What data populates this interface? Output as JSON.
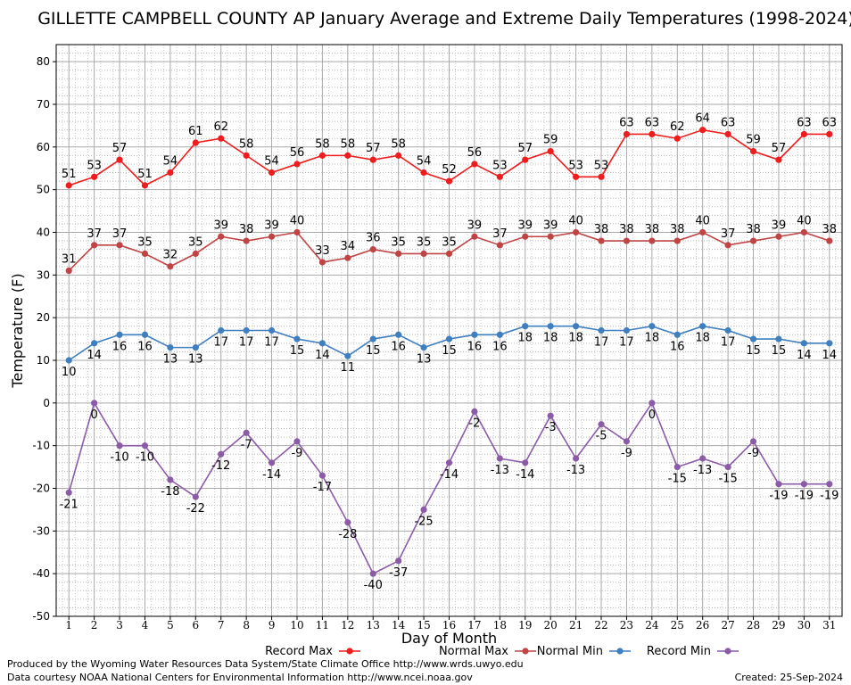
{
  "chart_data": {
    "type": "line",
    "title": "GILLETTE CAMPBELL COUNTY AP January Average and Extreme Daily Temperatures (1998-2024)",
    "xlabel": "Day of Month",
    "ylabel": "Temperature (F)",
    "ylim": [
      -50,
      84
    ],
    "yticks": [
      -50,
      -40,
      -30,
      -20,
      -10,
      0,
      10,
      20,
      30,
      40,
      50,
      60,
      70,
      80
    ],
    "x": [
      1,
      2,
      3,
      4,
      5,
      6,
      7,
      8,
      9,
      10,
      11,
      12,
      13,
      14,
      15,
      16,
      17,
      18,
      19,
      20,
      21,
      22,
      23,
      24,
      25,
      26,
      27,
      28,
      29,
      30,
      31
    ],
    "grid": true,
    "legend_position": "bottom",
    "series": [
      {
        "name": "Record Max",
        "color": "#ee1c1c",
        "values": [
          51,
          53,
          57,
          51,
          54,
          61,
          62,
          58,
          54,
          56,
          58,
          58,
          57,
          58,
          54,
          52,
          56,
          53,
          57,
          59,
          53,
          53,
          63,
          63,
          62,
          64,
          63,
          59,
          57,
          63,
          63
        ]
      },
      {
        "name": "Normal Max",
        "color": "#c04444",
        "values": [
          31,
          37,
          37,
          35,
          32,
          35,
          39,
          38,
          39,
          40,
          33,
          34,
          36,
          35,
          35,
          35,
          39,
          37,
          39,
          39,
          40,
          38,
          38,
          38,
          38,
          40,
          37,
          38,
          39,
          40,
          38
        ]
      },
      {
        "name": "Normal Min",
        "color": "#3f7fbf",
        "values": [
          10,
          14,
          16,
          16,
          13,
          13,
          17,
          17,
          17,
          15,
          14,
          11,
          15,
          16,
          13,
          15,
          16,
          16,
          18,
          18,
          18,
          17,
          17,
          18,
          16,
          18,
          17,
          15,
          15,
          14,
          14
        ]
      },
      {
        "name": "Record Min",
        "color": "#8c5ba8",
        "values": [
          -21,
          0,
          -10,
          -10,
          -18,
          -22,
          -12,
          -7,
          -14,
          -9,
          -17,
          -28,
          -40,
          -37,
          -25,
          -14,
          -2,
          -13,
          -14,
          -3,
          -13,
          -5,
          -9,
          0,
          -15,
          -13,
          -15,
          -9,
          -19,
          -19,
          -19
        ]
      }
    ]
  },
  "footer": {
    "line1": "Produced by the Wyoming Water Resources Data System/State Climate Office http://www.wrds.uwyo.edu",
    "line2": "Data courtesy NOAA National Centers for Environmental Information http://www.ncei.noaa.gov",
    "created": "Created: 25-Sep-2024"
  }
}
